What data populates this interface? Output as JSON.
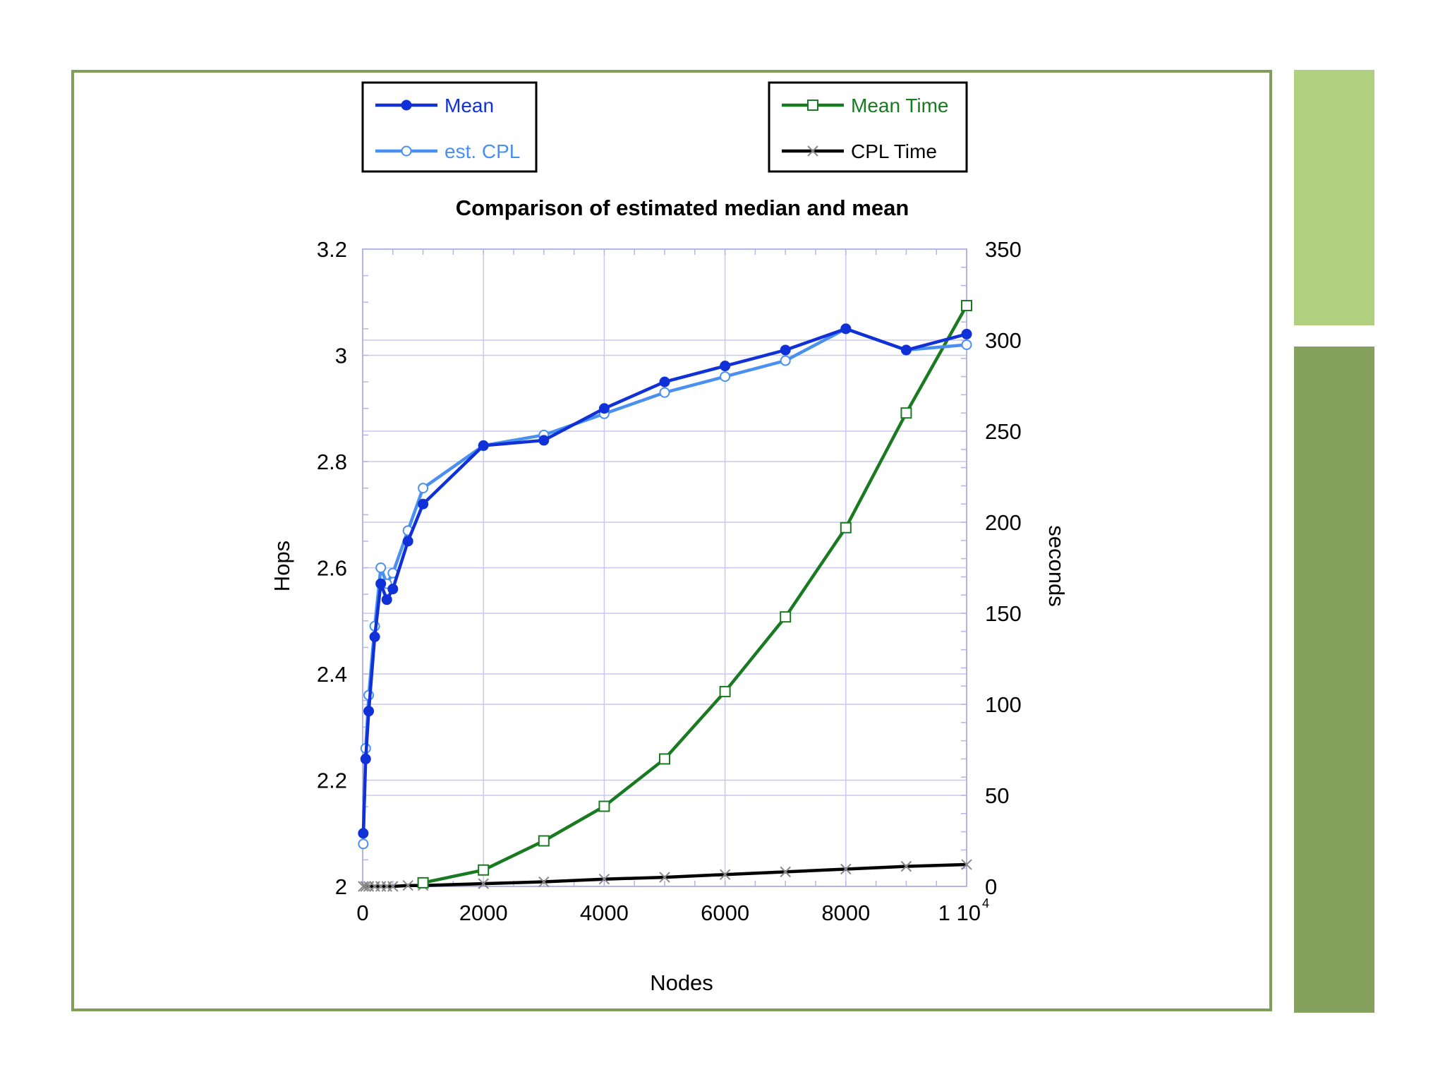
{
  "colors": {
    "frame_border": "#7f9f5b",
    "side_bar_top": "#b0d080",
    "side_bar_bottom": "#86a05e",
    "mean": "#1030d8",
    "est_cpl": "#4a90f0",
    "mean_time": "#1a7a22",
    "cpl_time": "#000000",
    "grid": "#c8c8f0",
    "plot_border": "#b4b4e6"
  },
  "chart_data": {
    "type": "line",
    "title": "Comparison of estimated median and mean",
    "xlabel": "Nodes",
    "ylabel_left": "Hops",
    "ylabel_right": "seconds",
    "xlim": [
      0,
      10000
    ],
    "ylim_left": [
      2,
      3.2
    ],
    "ylim_right": [
      0,
      350
    ],
    "x_ticks": [
      "0",
      "2000",
      "4000",
      "6000",
      "8000"
    ],
    "x_tick_values": [
      0,
      2000,
      4000,
      6000,
      8000
    ],
    "x_last_tick": {
      "value": 10000,
      "mantissa": "1 10",
      "exponent": "4"
    },
    "y_left_ticks": [
      "2",
      "2.2",
      "2.4",
      "2.6",
      "2.8",
      "3",
      "3.2"
    ],
    "y_left_tick_values": [
      2,
      2.2,
      2.4,
      2.6,
      2.8,
      3,
      3.2
    ],
    "y_right_ticks": [
      "0",
      "50",
      "100",
      "150",
      "200",
      "250",
      "300",
      "350"
    ],
    "y_right_tick_values": [
      0,
      50,
      100,
      150,
      200,
      250,
      300,
      350
    ],
    "grid": true,
    "legends": [
      {
        "position": "top-left",
        "entries": [
          "Mean",
          "est. CPL"
        ]
      },
      {
        "position": "top-right",
        "entries": [
          "Mean Time",
          "CPL Time"
        ]
      }
    ],
    "series": [
      {
        "name": "Mean",
        "axis": "left",
        "marker": "filled-circle",
        "color": "#1030d8",
        "x": [
          10,
          50,
          100,
          200,
          300,
          400,
          500,
          750,
          1000,
          2000,
          3000,
          4000,
          5000,
          6000,
          7000,
          8000,
          9000,
          10000
        ],
        "y": [
          2.1,
          2.24,
          2.33,
          2.47,
          2.57,
          2.54,
          2.56,
          2.65,
          2.72,
          2.83,
          2.84,
          2.9,
          2.95,
          2.98,
          3.01,
          3.05,
          3.01,
          3.04
        ]
      },
      {
        "name": "est. CPL",
        "axis": "left",
        "marker": "open-circle",
        "color": "#4a90f0",
        "x": [
          10,
          50,
          100,
          200,
          300,
          400,
          500,
          750,
          1000,
          2000,
          3000,
          4000,
          5000,
          6000,
          7000,
          8000,
          9000,
          10000
        ],
        "y": [
          2.08,
          2.26,
          2.36,
          2.49,
          2.6,
          2.57,
          2.59,
          2.67,
          2.75,
          2.83,
          2.85,
          2.89,
          2.93,
          2.96,
          2.99,
          3.05,
          3.01,
          3.02
        ]
      },
      {
        "name": "Mean Time",
        "axis": "right",
        "marker": "open-square",
        "color": "#1a7a22",
        "x": [
          1000,
          2000,
          3000,
          4000,
          5000,
          6000,
          7000,
          8000,
          9000,
          10000
        ],
        "y": [
          2,
          9,
          25,
          44,
          70,
          107,
          148,
          197,
          260,
          319
        ]
      },
      {
        "name": "CPL Time",
        "axis": "right",
        "marker": "x",
        "color": "#000000",
        "x": [
          10,
          50,
          100,
          200,
          300,
          400,
          500,
          750,
          1000,
          2000,
          3000,
          4000,
          5000,
          6000,
          7000,
          8000,
          9000,
          10000
        ],
        "y": [
          0,
          0,
          0,
          0,
          0,
          0,
          0,
          0.5,
          0.5,
          1.5,
          2.5,
          4,
          5,
          6.5,
          8,
          9.5,
          11,
          12
        ]
      }
    ]
  }
}
